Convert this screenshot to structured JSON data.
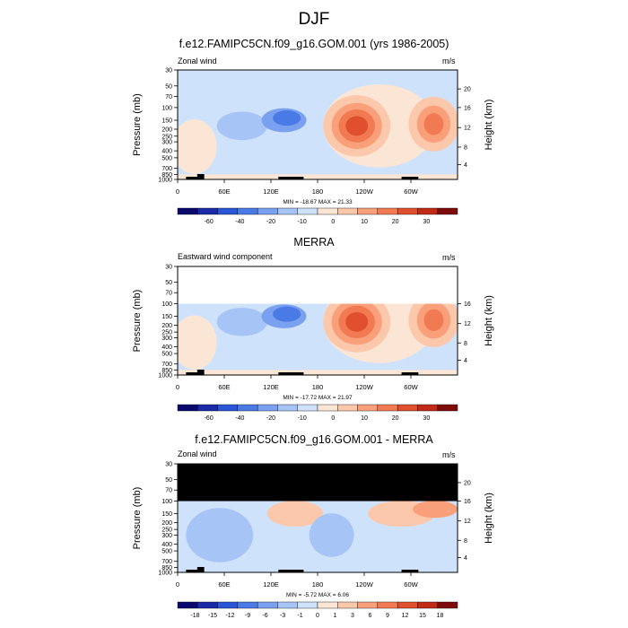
{
  "main_title": "DJF",
  "colors": {
    "cbar_main": [
      "#0a0a6e",
      "#1a2aa8",
      "#2a55d6",
      "#4a7ae6",
      "#7aa0f0",
      "#a6c4f6",
      "#cfe2fb",
      "#fbe6d6",
      "#fcc8ac",
      "#f9a07a",
      "#f27a52",
      "#e0502e",
      "#c02a16",
      "#7e0a0a"
    ],
    "cbar_diff": [
      "#0a0a6e",
      "#1a2aa8",
      "#2a55d6",
      "#4a7ae6",
      "#7aa0f0",
      "#a6c4f6",
      "#cfe2fb",
      "#fbe6d6",
      "#fcc8ac",
      "#f9a07a",
      "#f27a52",
      "#e0502e",
      "#c02a16",
      "#7e0a0a"
    ],
    "mask": "#000000",
    "topo": "#000000"
  },
  "panels": [
    {
      "title": "f.e12.FAMIPC5CN.f09_g16.GOM.001 (yrs 1986-2005)",
      "left_label": "Zonal wind",
      "right_label": "m/s",
      "minmax": "MIN = -18.67  MAX =  21.33",
      "ylabel": "Pressure (mb)",
      "ylabel_right": "Height (km)"
    },
    {
      "title": "MERRA",
      "left_label": "Eastward wind component",
      "right_label": "m/s",
      "minmax": "MIN = -17.72  MAX =  21.97",
      "ylabel": "Pressure (mb)",
      "ylabel_right": "Height (km)"
    },
    {
      "title": "f.e12.FAMIPC5CN.f09_g16.GOM.001 - MERRA",
      "left_label": "Zonal wind",
      "right_label": "m/s",
      "minmax": "MIN =  -5.72  MAX =  6.06",
      "ylabel": "Pressure (mb)",
      "ylabel_right": "Height (km)"
    }
  ],
  "chart_data": [
    {
      "type": "heatmap",
      "title": "f.e12.FAMIPC5CN.f09_g16.GOM.001 (yrs 1986-2005)",
      "xlabel": "",
      "ylabel": "Pressure (mb)",
      "ylabel_right": "Height (km)",
      "x_ticks": [
        "0",
        "60E",
        "120E",
        "180",
        "120W",
        "60W"
      ],
      "y_ticks": [
        "30",
        "50",
        "70",
        "100",
        "150",
        "200",
        "250",
        "300",
        "400",
        "500",
        "700",
        "850",
        "1000"
      ],
      "y_right_ticks": [
        "20",
        "16",
        "12",
        "8",
        "4"
      ],
      "colorbar_levels": [
        "-60",
        "-40",
        "-20",
        "-10",
        "0",
        "10",
        "20",
        "30"
      ],
      "units": "m/s",
      "min": -18.67,
      "max": 21.33
    },
    {
      "type": "heatmap",
      "title": "MERRA",
      "xlabel": "",
      "ylabel": "Pressure (mb)",
      "ylabel_right": "Height (km)",
      "x_ticks": [
        "0",
        "60E",
        "120E",
        "180",
        "120W",
        "60W"
      ],
      "y_ticks": [
        "30",
        "50",
        "70",
        "100",
        "150",
        "200",
        "250",
        "300",
        "400",
        "500",
        "700",
        "850",
        "1000"
      ],
      "y_right_ticks": [
        "16",
        "12",
        "8",
        "4"
      ],
      "colorbar_levels": [
        "-60",
        "-40",
        "-20",
        "-10",
        "0",
        "10",
        "20",
        "30"
      ],
      "units": "m/s",
      "min": -17.72,
      "max": 21.97
    },
    {
      "type": "heatmap",
      "title": "f.e12.FAMIPC5CN.f09_g16.GOM.001 - MERRA",
      "xlabel": "",
      "ylabel": "Pressure (mb)",
      "ylabel_right": "Height (km)",
      "x_ticks": [
        "0",
        "60E",
        "120E",
        "180",
        "120W",
        "60W"
      ],
      "y_ticks": [
        "30",
        "50",
        "70",
        "100",
        "150",
        "200",
        "250",
        "300",
        "400",
        "500",
        "700",
        "850",
        "1000"
      ],
      "y_right_ticks": [
        "20",
        "16",
        "12",
        "8",
        "4"
      ],
      "colorbar_levels": [
        "-18",
        "-15",
        "-12",
        "-9",
        "-6",
        "-3",
        "-1",
        "0",
        "1",
        "3",
        "6",
        "9",
        "12",
        "15",
        "18"
      ],
      "units": "m/s",
      "min": -5.72,
      "max": 6.06
    }
  ]
}
